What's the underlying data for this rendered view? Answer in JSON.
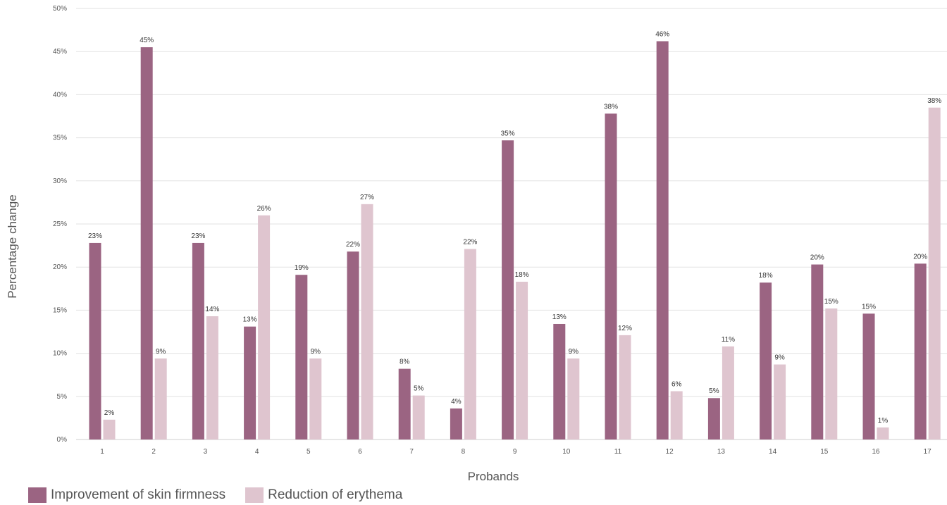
{
  "chart_data": {
    "type": "bar",
    "categories": [
      "1",
      "2",
      "3",
      "4",
      "5",
      "6",
      "7",
      "8",
      "9",
      "10",
      "11",
      "12",
      "13",
      "14",
      "15",
      "16",
      "17"
    ],
    "series": [
      {
        "name": "Improvement of skin firmness",
        "color": "#9b6482",
        "values": [
          22.8,
          45.5,
          22.8,
          13.1,
          19.1,
          21.8,
          8.2,
          3.6,
          34.7,
          13.4,
          37.8,
          46.2,
          4.8,
          18.2,
          20.3,
          14.6,
          20.4
        ],
        "labels": [
          "23%",
          "45%",
          "23%",
          "13%",
          "19%",
          "22%",
          "8%",
          "4%",
          "35%",
          "13%",
          "38%",
          "46%",
          "5%",
          "18%",
          "20%",
          "15%",
          "20%"
        ]
      },
      {
        "name": "Reduction of erythema",
        "color": "#dfc5cf",
        "values": [
          2.3,
          9.4,
          14.3,
          26.0,
          9.4,
          27.3,
          5.1,
          22.1,
          18.3,
          9.4,
          12.1,
          5.6,
          10.8,
          8.7,
          15.2,
          1.4,
          38.5
        ],
        "labels": [
          "2%",
          "9%",
          "14%",
          "26%",
          "9%",
          "27%",
          "5%",
          "22%",
          "18%",
          "9%",
          "12%",
          "6%",
          "11%",
          "9%",
          "15%",
          "1%",
          "38%"
        ]
      }
    ],
    "xlabel": "Probands",
    "ylabel": "Percentage change",
    "ylim": [
      0,
      50
    ],
    "yticks": [
      0,
      5,
      10,
      15,
      20,
      25,
      30,
      35,
      40,
      45,
      50
    ],
    "ytick_labels": [
      "0%",
      "5%",
      "10%",
      "15%",
      "20%",
      "25%",
      "30%",
      "35%",
      "40%",
      "45%",
      "50%"
    ],
    "grid": true,
    "legend_position": "bottom-left"
  }
}
